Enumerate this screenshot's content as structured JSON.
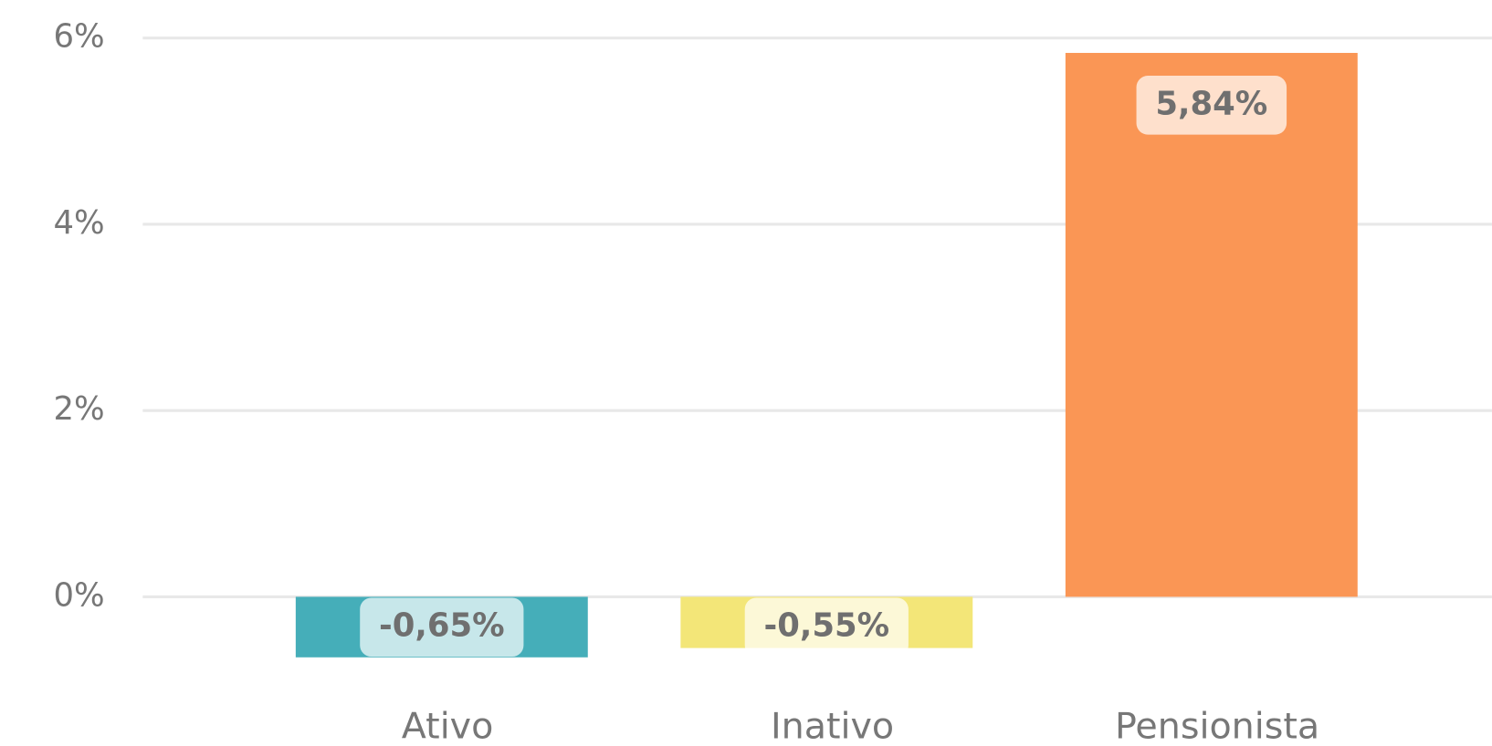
{
  "chart_data": {
    "type": "bar",
    "categories": [
      "Ativo",
      "Inativo",
      "Pensionista"
    ],
    "values": [
      -0.65,
      -0.55,
      5.84
    ],
    "value_labels": [
      "-0,65%",
      "-0,55%",
      "5,84%"
    ],
    "colors": [
      "#45aeb9",
      "#f3e678",
      "#fa9655"
    ],
    "ylim": [
      -0.65,
      6
    ],
    "yticks": [
      {
        "value": 0,
        "label": "0%"
      },
      {
        "value": 2,
        "label": "2%"
      },
      {
        "value": 4,
        "label": "4%"
      },
      {
        "value": 6,
        "label": "6%"
      }
    ],
    "grid": true
  }
}
